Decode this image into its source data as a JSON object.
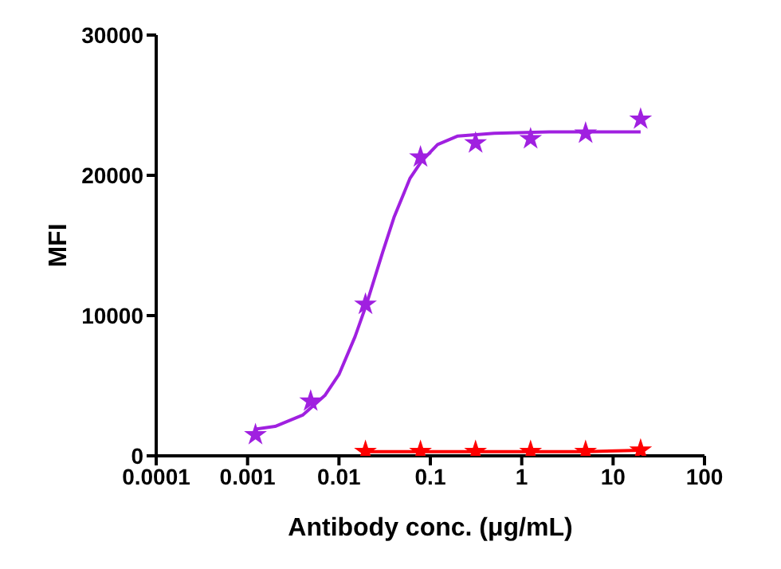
{
  "chart_data": {
    "type": "scatter",
    "xlabel": "Antibody conc. (μg/mL)",
    "ylabel": "MFI",
    "log": "x",
    "xlim": [
      0.0001,
      100
    ],
    "xticks": [
      0.0001,
      0.001,
      0.01,
      0.1,
      1,
      10,
      100
    ],
    "ylim": [
      0,
      30000
    ],
    "yticks": [
      0,
      10000,
      20000,
      30000
    ],
    "grid": false,
    "series": [
      {
        "marker": "star",
        "color": "#a020e0",
        "x": [
          0.00122,
          0.0049,
          0.0195,
          0.078,
          0.3125,
          1.25,
          5,
          20
        ],
        "values": [
          1500,
          3900,
          10800,
          21300,
          22300,
          22600,
          23000,
          24000
        ]
      },
      {
        "type": "line",
        "marker": "none",
        "color": "#a020e0",
        "x": [
          0.00122,
          0.002,
          0.004,
          0.007,
          0.01,
          0.015,
          0.02,
          0.03,
          0.04,
          0.06,
          0.08,
          0.12,
          0.2,
          0.5,
          2,
          20
        ],
        "values": [
          1900,
          2100,
          2900,
          4300,
          5800,
          8500,
          10800,
          14500,
          17000,
          19800,
          21000,
          22200,
          22800,
          23000,
          23100,
          23100
        ]
      },
      {
        "type": "line",
        "marker": "star",
        "color": "#ff0000",
        "x": [
          0.0195,
          0.078,
          0.3125,
          1.25,
          5,
          20
        ],
        "values": [
          300,
          300,
          300,
          300,
          300,
          400
        ]
      }
    ]
  }
}
